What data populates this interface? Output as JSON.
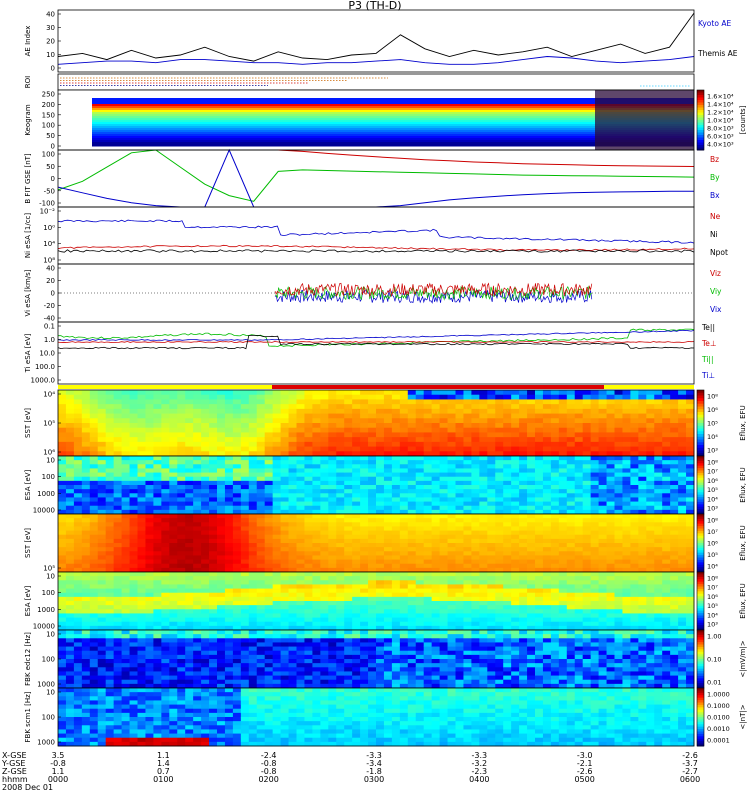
{
  "title": "P3 (TH-D)",
  "chart_data": [
    {
      "type": "line",
      "ylabel": "AE Index",
      "ylim": [
        0,
        40
      ],
      "yticks": [
        0,
        10,
        20,
        30,
        40
      ],
      "series": [
        {
          "name": "Kyoto AE",
          "color": "#0000cc",
          "values": [
            5,
            6,
            7,
            7,
            6,
            8,
            8,
            7,
            6,
            6,
            5,
            6,
            6,
            7,
            8,
            6,
            5,
            5,
            6,
            8,
            10,
            9,
            7,
            6,
            7,
            8,
            10
          ]
        },
        {
          "name": "Themis AE",
          "color": "#000000",
          "values": [
            10,
            12,
            8,
            14,
            9,
            11,
            16,
            10,
            7,
            13,
            9,
            8,
            11,
            12,
            24,
            15,
            10,
            14,
            11,
            13,
            16,
            10,
            14,
            18,
            12,
            16,
            38
          ]
        }
      ]
    },
    {
      "type": "heatmap",
      "ylabel": "ROI",
      "description_labels": []
    },
    {
      "type": "heatmap",
      "ylabel": "Keogram",
      "ylim": [
        0,
        250
      ],
      "yticks": [
        0,
        50,
        100,
        150,
        200,
        250
      ],
      "colorbar": {
        "label": "[counts]",
        "ticks": [
          "1.6×10⁴",
          "1.4×10⁴",
          "1.2×10⁴",
          "1.0×10⁴",
          "8.0×10³",
          "6.0×10³",
          "4.0×10³"
        ]
      }
    },
    {
      "type": "line",
      "ylabel": "B FIT GSE [nT]",
      "ylim": [
        -100,
        100
      ],
      "yticks": [
        -100,
        -50,
        0,
        50,
        100
      ],
      "series": [
        {
          "name": "Bz",
          "color": "#cc0000",
          "values": [
            null,
            null,
            null,
            null,
            null,
            null,
            null,
            null,
            null,
            100,
            95,
            88,
            82,
            76,
            71,
            66,
            62,
            58,
            55,
            52,
            50,
            48,
            46,
            45,
            44,
            43,
            42
          ]
        },
        {
          "name": "By",
          "color": "#00bb00",
          "values": [
            -40,
            -10,
            40,
            90,
            100,
            40,
            -20,
            -60,
            -80,
            25,
            30,
            28,
            26,
            24,
            22,
            20,
            18,
            16,
            14,
            12,
            11,
            10,
            9,
            8,
            7,
            6,
            5
          ]
        },
        {
          "name": "Bx",
          "color": "#0000cc",
          "values": [
            -30,
            -50,
            -70,
            -85,
            -95,
            -100,
            -100,
            100,
            -100,
            -100,
            -100,
            -100,
            -100,
            -100,
            -95,
            -85,
            -75,
            -68,
            -62,
            -57,
            -53,
            -50,
            -48,
            -47,
            -46,
            -45,
            -45
          ]
        }
      ]
    },
    {
      "type": "line",
      "ylabel": "Ni eSA [1/cc]",
      "yscale": "log",
      "yticks": [
        "10⁸",
        "10⁴",
        "10⁰",
        "10⁻²"
      ],
      "series": [
        {
          "name": "Ne",
          "color": "#cc0000"
        },
        {
          "name": "Ni",
          "color": "#000000"
        },
        {
          "name": "Npot",
          "color": "#000000"
        }
      ]
    },
    {
      "type": "line",
      "ylabel": "Vi eSA [km/s]",
      "ylim": [
        -50,
        50
      ],
      "yticks": [
        -40,
        -20,
        0,
        20,
        40
      ],
      "series": [
        {
          "name": "Viz",
          "color": "#cc0000"
        },
        {
          "name": "Viy",
          "color": "#00bb00"
        },
        {
          "name": "Vix",
          "color": "#0000cc"
        }
      ]
    },
    {
      "type": "line",
      "ylabel": "Ti eSA [eV]",
      "yscale": "log",
      "yticks": [
        "1000.0",
        "100.0",
        "10.0",
        "1.0",
        "0.1"
      ],
      "series": [
        {
          "name": "Te||",
          "color": "#000000"
        },
        {
          "name": "Te⊥",
          "color": "#cc0000"
        },
        {
          "name": "Ti||",
          "color": "#00bb00"
        },
        {
          "name": "Ti⊥",
          "color": "#0000cc"
        }
      ]
    },
    {
      "type": "heatmap",
      "ylabel": "SST [eV]",
      "yticks": [
        "10⁶",
        "10⁵",
        "10⁴"
      ],
      "colorbar": {
        "label": "Eflux, EFU",
        "ticks": [
          "10⁸",
          "10⁶",
          "10⁵",
          "10⁴",
          "10³"
        ]
      }
    },
    {
      "type": "heatmap",
      "ylabel": "ESA [eV]",
      "yticks": [
        "10000",
        "1000",
        "100",
        "10"
      ],
      "colorbar": {
        "label": "Eflux, EFU",
        "ticks": [
          "10⁸",
          "10⁷",
          "10⁶",
          "10⁵",
          "10⁴",
          "10³"
        ]
      }
    },
    {
      "type": "heatmap",
      "ylabel": "SST [eV]",
      "yticks": [
        "10⁵"
      ],
      "colorbar": {
        "label": "Eflux, EFU",
        "ticks": [
          "10⁸",
          "10⁷",
          "10⁶",
          "10⁵",
          "10⁴"
        ]
      }
    },
    {
      "type": "heatmap",
      "ylabel": "ESA [eV]",
      "yticks": [
        "10000",
        "1000",
        "100",
        "10"
      ],
      "colorbar": {
        "label": "Eflux, EFU",
        "ticks": [
          "10⁸",
          "10⁷",
          "10⁶",
          "10⁵",
          "10⁴",
          "10³"
        ]
      }
    },
    {
      "type": "heatmap",
      "ylabel": "FBK edc12 [Hz]",
      "yticks": [
        "1000",
        "100",
        "10"
      ],
      "colorbar": {
        "label": "<|mV/m|>",
        "ticks": [
          "1.00",
          "0.10",
          "0.01"
        ]
      }
    },
    {
      "type": "heatmap",
      "ylabel": "FBK scm1 [Hz]",
      "yticks": [
        "1000",
        "100",
        "10"
      ],
      "colorbar": {
        "label": "<|nT|>",
        "ticks": [
          "1.0000",
          "0.1000",
          "0.0100",
          "0.0010",
          "0.0001"
        ]
      }
    }
  ],
  "ephemeris": {
    "labels": [
      "X-GSE",
      "Y-GSE",
      "Z-GSE",
      "hhmm",
      "2008 Dec 01"
    ],
    "columns": [
      [
        "3.5",
        "-0.8",
        "1.1",
        "0000"
      ],
      [
        "1.1",
        "1.4",
        "0.7",
        "0100"
      ],
      [
        "-2.4",
        "-0.8",
        "-0.8",
        "0200"
      ],
      [
        "-3.3",
        "-3.4",
        "-1.8",
        "0300"
      ],
      [
        "-3.3",
        "-3.2",
        "-2.3",
        "0400"
      ],
      [
        "-3.0",
        "-2.1",
        "-2.6",
        "0500"
      ],
      [
        "-2.6",
        "-3.7",
        "-2.7",
        "0600"
      ]
    ]
  }
}
